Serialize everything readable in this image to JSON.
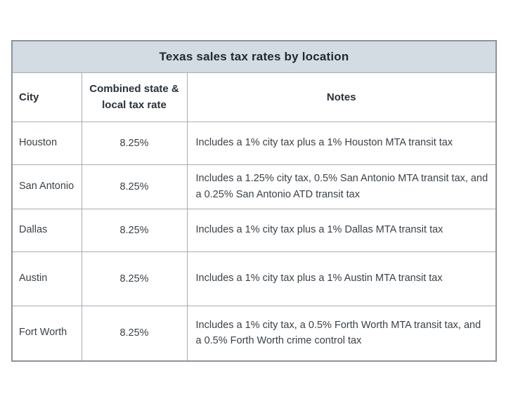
{
  "table": {
    "title": "Texas sales tax rates by location",
    "headers": {
      "city": "City",
      "rate": "Combined state & local tax rate",
      "notes": "Notes"
    },
    "rows": [
      {
        "city": "Houston",
        "rate": "8.25%",
        "notes": "Includes a 1% city tax plus a 1% Houston MTA transit tax"
      },
      {
        "city": "San Antonio",
        "rate": "8.25%",
        "notes": "Includes a 1.25% city tax, 0.5% San Antonio MTA transit tax, and a 0.25% San Antonio ATD transit tax"
      },
      {
        "city": "Dallas",
        "rate": "8.25%",
        "notes": "Includes a 1% city tax plus a 1% Dallas MTA transit tax"
      },
      {
        "city": "Austin",
        "rate": "8.25%",
        "notes": "Includes a 1% city tax plus a 1% Austin MTA transit tax"
      },
      {
        "city": "Fort Worth",
        "rate": "8.25%",
        "notes": "Includes a 1% city tax, a 0.5% Forth Worth MTA transit tax, and a 0.5% Forth Worth crime control tax"
      }
    ],
    "colors": {
      "title_bg": "#d3dce3",
      "outer_border": "#8d949c",
      "inner_border": "#a6acb3",
      "title_text": "#1f2933",
      "body_text": "#3b4248"
    }
  },
  "chart_data": {
    "type": "table",
    "title": "Texas sales tax rates by location",
    "columns": [
      "City",
      "Combined state & local tax rate",
      "Notes"
    ],
    "rows": [
      [
        "Houston",
        "8.25%",
        "Includes a 1% city tax plus a 1% Houston MTA transit tax"
      ],
      [
        "San Antonio",
        "8.25%",
        "Includes a 1.25% city tax, 0.5% San Antonio MTA transit tax, and a 0.25% San Antonio ATD transit tax"
      ],
      [
        "Dallas",
        "8.25%",
        "Includes a 1% city tax plus a 1% Dallas MTA transit tax"
      ],
      [
        "Austin",
        "8.25%",
        "Includes a 1% city tax plus a 1% Austin MTA transit tax"
      ],
      [
        "Fort Worth",
        "8.25%",
        "Includes a 1% city tax, a 0.5% Forth Worth MTA transit tax, and a 0.5% Forth Worth crime control tax"
      ]
    ]
  }
}
